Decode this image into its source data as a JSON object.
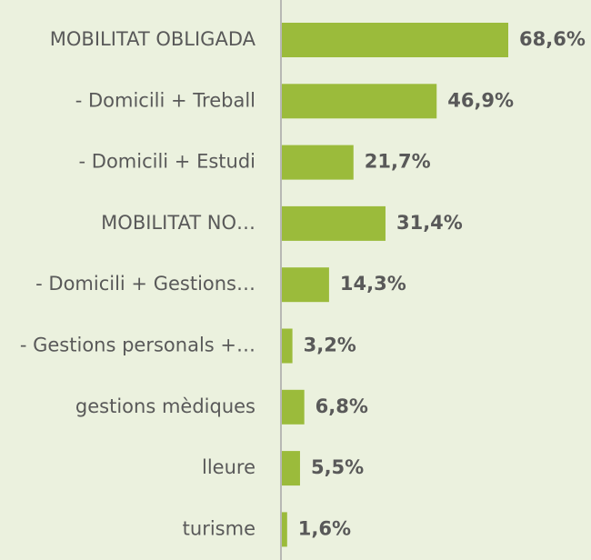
{
  "chart_data": {
    "type": "bar",
    "orientation": "horizontal",
    "categories": [
      "MOBILITAT OBLIGADA",
      "- Domicili + Treball",
      "- Domicili + Estudi",
      "MOBILITAT NO…",
      "- Domicili + Gestions…",
      "- Gestions personals +…",
      "gestions mèdiques",
      "lleure",
      "turisme"
    ],
    "values": [
      68.6,
      46.9,
      21.7,
      31.4,
      14.3,
      3.2,
      6.8,
      5.5,
      1.6
    ],
    "value_labels": [
      "68,6%",
      "46,9%",
      "21,7%",
      "31,4%",
      "14,3%",
      "3,2%",
      "6,8%",
      "5,5%",
      "1,6%"
    ],
    "color": "#9bbb3b"
  }
}
